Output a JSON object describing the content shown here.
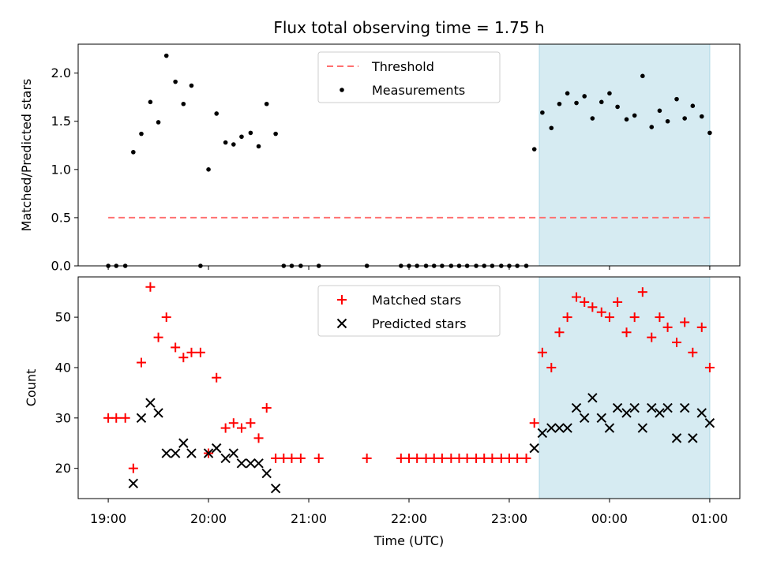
{
  "chart_data": [
    {
      "type": "scatter",
      "title": "Flux total observing time = 1.75 h",
      "xlabel": "",
      "ylabel": "Matched/Predicted stars",
      "ylim": [
        0,
        2.3
      ],
      "yticks": [
        0.0,
        0.5,
        1.0,
        1.5,
        2.0
      ],
      "ytick_labels": [
        "0.0",
        "0.5",
        "1.0",
        "1.5",
        "2.0"
      ],
      "legend_position": "top-center",
      "highlight_span": {
        "start_hours": 23.3,
        "end_hours": 25.0,
        "color": "#add8e6"
      },
      "threshold": {
        "name": "Threshold",
        "value": 0.5,
        "x_start_hours": 19.0,
        "x_end_hours": 25.0,
        "color": "#ff7070"
      },
      "series": [
        {
          "name": "Measurements",
          "color": "#000000",
          "x_hours": [
            19.0,
            19.08,
            19.17,
            19.25,
            19.33,
            19.42,
            19.5,
            19.58,
            19.67,
            19.75,
            19.83,
            19.92,
            20.0,
            20.08,
            20.17,
            20.25,
            20.33,
            20.42,
            20.5,
            20.58,
            20.67,
            20.75,
            20.83,
            20.92,
            21.1,
            21.58,
            21.92,
            22.0,
            22.08,
            22.17,
            22.25,
            22.33,
            22.42,
            22.5,
            22.58,
            22.67,
            22.75,
            22.83,
            22.92,
            23.0,
            23.08,
            23.17,
            23.25,
            23.33,
            23.42,
            23.5,
            23.58,
            23.67,
            23.75,
            23.83,
            23.92,
            24.0,
            24.08,
            24.17,
            24.25,
            24.33,
            24.42,
            24.5,
            24.58,
            24.67,
            24.75,
            24.83,
            24.92,
            25.0
          ],
          "values": [
            0,
            0,
            0,
            1.18,
            1.37,
            1.7,
            1.49,
            2.18,
            1.91,
            1.68,
            1.87,
            0,
            1.0,
            1.58,
            1.28,
            1.26,
            1.34,
            1.38,
            1.24,
            1.68,
            1.37,
            0,
            0,
            0,
            0,
            0,
            0,
            0,
            0,
            0,
            0,
            0,
            0,
            0,
            0,
            0,
            0,
            0,
            0,
            0,
            0,
            0,
            1.21,
            1.59,
            1.43,
            1.68,
            1.79,
            1.69,
            1.76,
            1.53,
            1.7,
            1.79,
            1.65,
            1.52,
            1.56,
            1.97,
            1.44,
            1.61,
            1.5,
            1.73,
            1.53,
            1.66,
            1.55,
            1.38
          ]
        }
      ]
    },
    {
      "type": "scatter",
      "title": "",
      "xlabel": "Time (UTC)",
      "ylabel": "Count",
      "ylim": [
        14,
        58
      ],
      "yticks": [
        20,
        30,
        40,
        50
      ],
      "ytick_labels": [
        "20",
        "30",
        "40",
        "50"
      ],
      "xlim_hours": [
        18.7,
        25.3
      ],
      "xticks_hours": [
        19,
        20,
        21,
        22,
        23,
        24,
        25
      ],
      "xtick_labels": [
        "19:00",
        "20:00",
        "21:00",
        "22:00",
        "23:00",
        "00:00",
        "01:00"
      ],
      "legend_position": "top-center",
      "highlight_span": {
        "start_hours": 23.3,
        "end_hours": 25.0,
        "color": "#add8e6"
      },
      "series": [
        {
          "name": "Matched stars",
          "marker": "plus",
          "color": "#ff0000",
          "x_hours": [
            19.0,
            19.08,
            19.17,
            19.25,
            19.33,
            19.42,
            19.5,
            19.58,
            19.67,
            19.75,
            19.83,
            19.92,
            20.0,
            20.08,
            20.17,
            20.25,
            20.33,
            20.42,
            20.5,
            20.58,
            20.67,
            20.75,
            20.83,
            20.92,
            21.1,
            21.58,
            21.92,
            22.0,
            22.08,
            22.17,
            22.25,
            22.33,
            22.42,
            22.5,
            22.58,
            22.67,
            22.75,
            22.83,
            22.92,
            23.0,
            23.08,
            23.17,
            23.25,
            23.33,
            23.42,
            23.5,
            23.58,
            23.67,
            23.75,
            23.83,
            23.92,
            24.0,
            24.08,
            24.17,
            24.25,
            24.33,
            24.42,
            24.5,
            24.58,
            24.67,
            24.75,
            24.83,
            24.92,
            25.0
          ],
          "values": [
            30,
            30,
            30,
            20,
            41,
            56,
            46,
            50,
            44,
            42,
            43,
            43,
            23,
            38,
            28,
            29,
            28,
            29,
            26,
            32,
            22,
            22,
            22,
            22,
            22,
            22,
            22,
            22,
            22,
            22,
            22,
            22,
            22,
            22,
            22,
            22,
            22,
            22,
            22,
            22,
            22,
            22,
            29,
            43,
            40,
            47,
            50,
            54,
            53,
            52,
            51,
            50,
            53,
            47,
            50,
            55,
            46,
            50,
            48,
            45,
            49,
            43,
            48,
            40
          ]
        },
        {
          "name": "Predicted stars",
          "marker": "x",
          "color": "#000000",
          "x_hours": [
            19.25,
            19.33,
            19.42,
            19.5,
            19.58,
            19.67,
            19.75,
            19.83,
            20.0,
            20.08,
            20.17,
            20.25,
            20.33,
            20.42,
            20.5,
            20.58,
            20.67,
            23.25,
            23.33,
            23.42,
            23.5,
            23.58,
            23.67,
            23.75,
            23.83,
            23.92,
            24.0,
            24.08,
            24.17,
            24.25,
            24.33,
            24.42,
            24.5,
            24.58,
            24.67,
            24.75,
            24.83,
            24.92,
            25.0
          ],
          "values": [
            17,
            30,
            33,
            31,
            23,
            23,
            25,
            23,
            23,
            24,
            22,
            23,
            21,
            21,
            21,
            19,
            16,
            24,
            27,
            28,
            28,
            28,
            32,
            30,
            34,
            30,
            28,
            32,
            31,
            32,
            28,
            32,
            31,
            32,
            26,
            32,
            26,
            31,
            29
          ]
        }
      ]
    }
  ]
}
